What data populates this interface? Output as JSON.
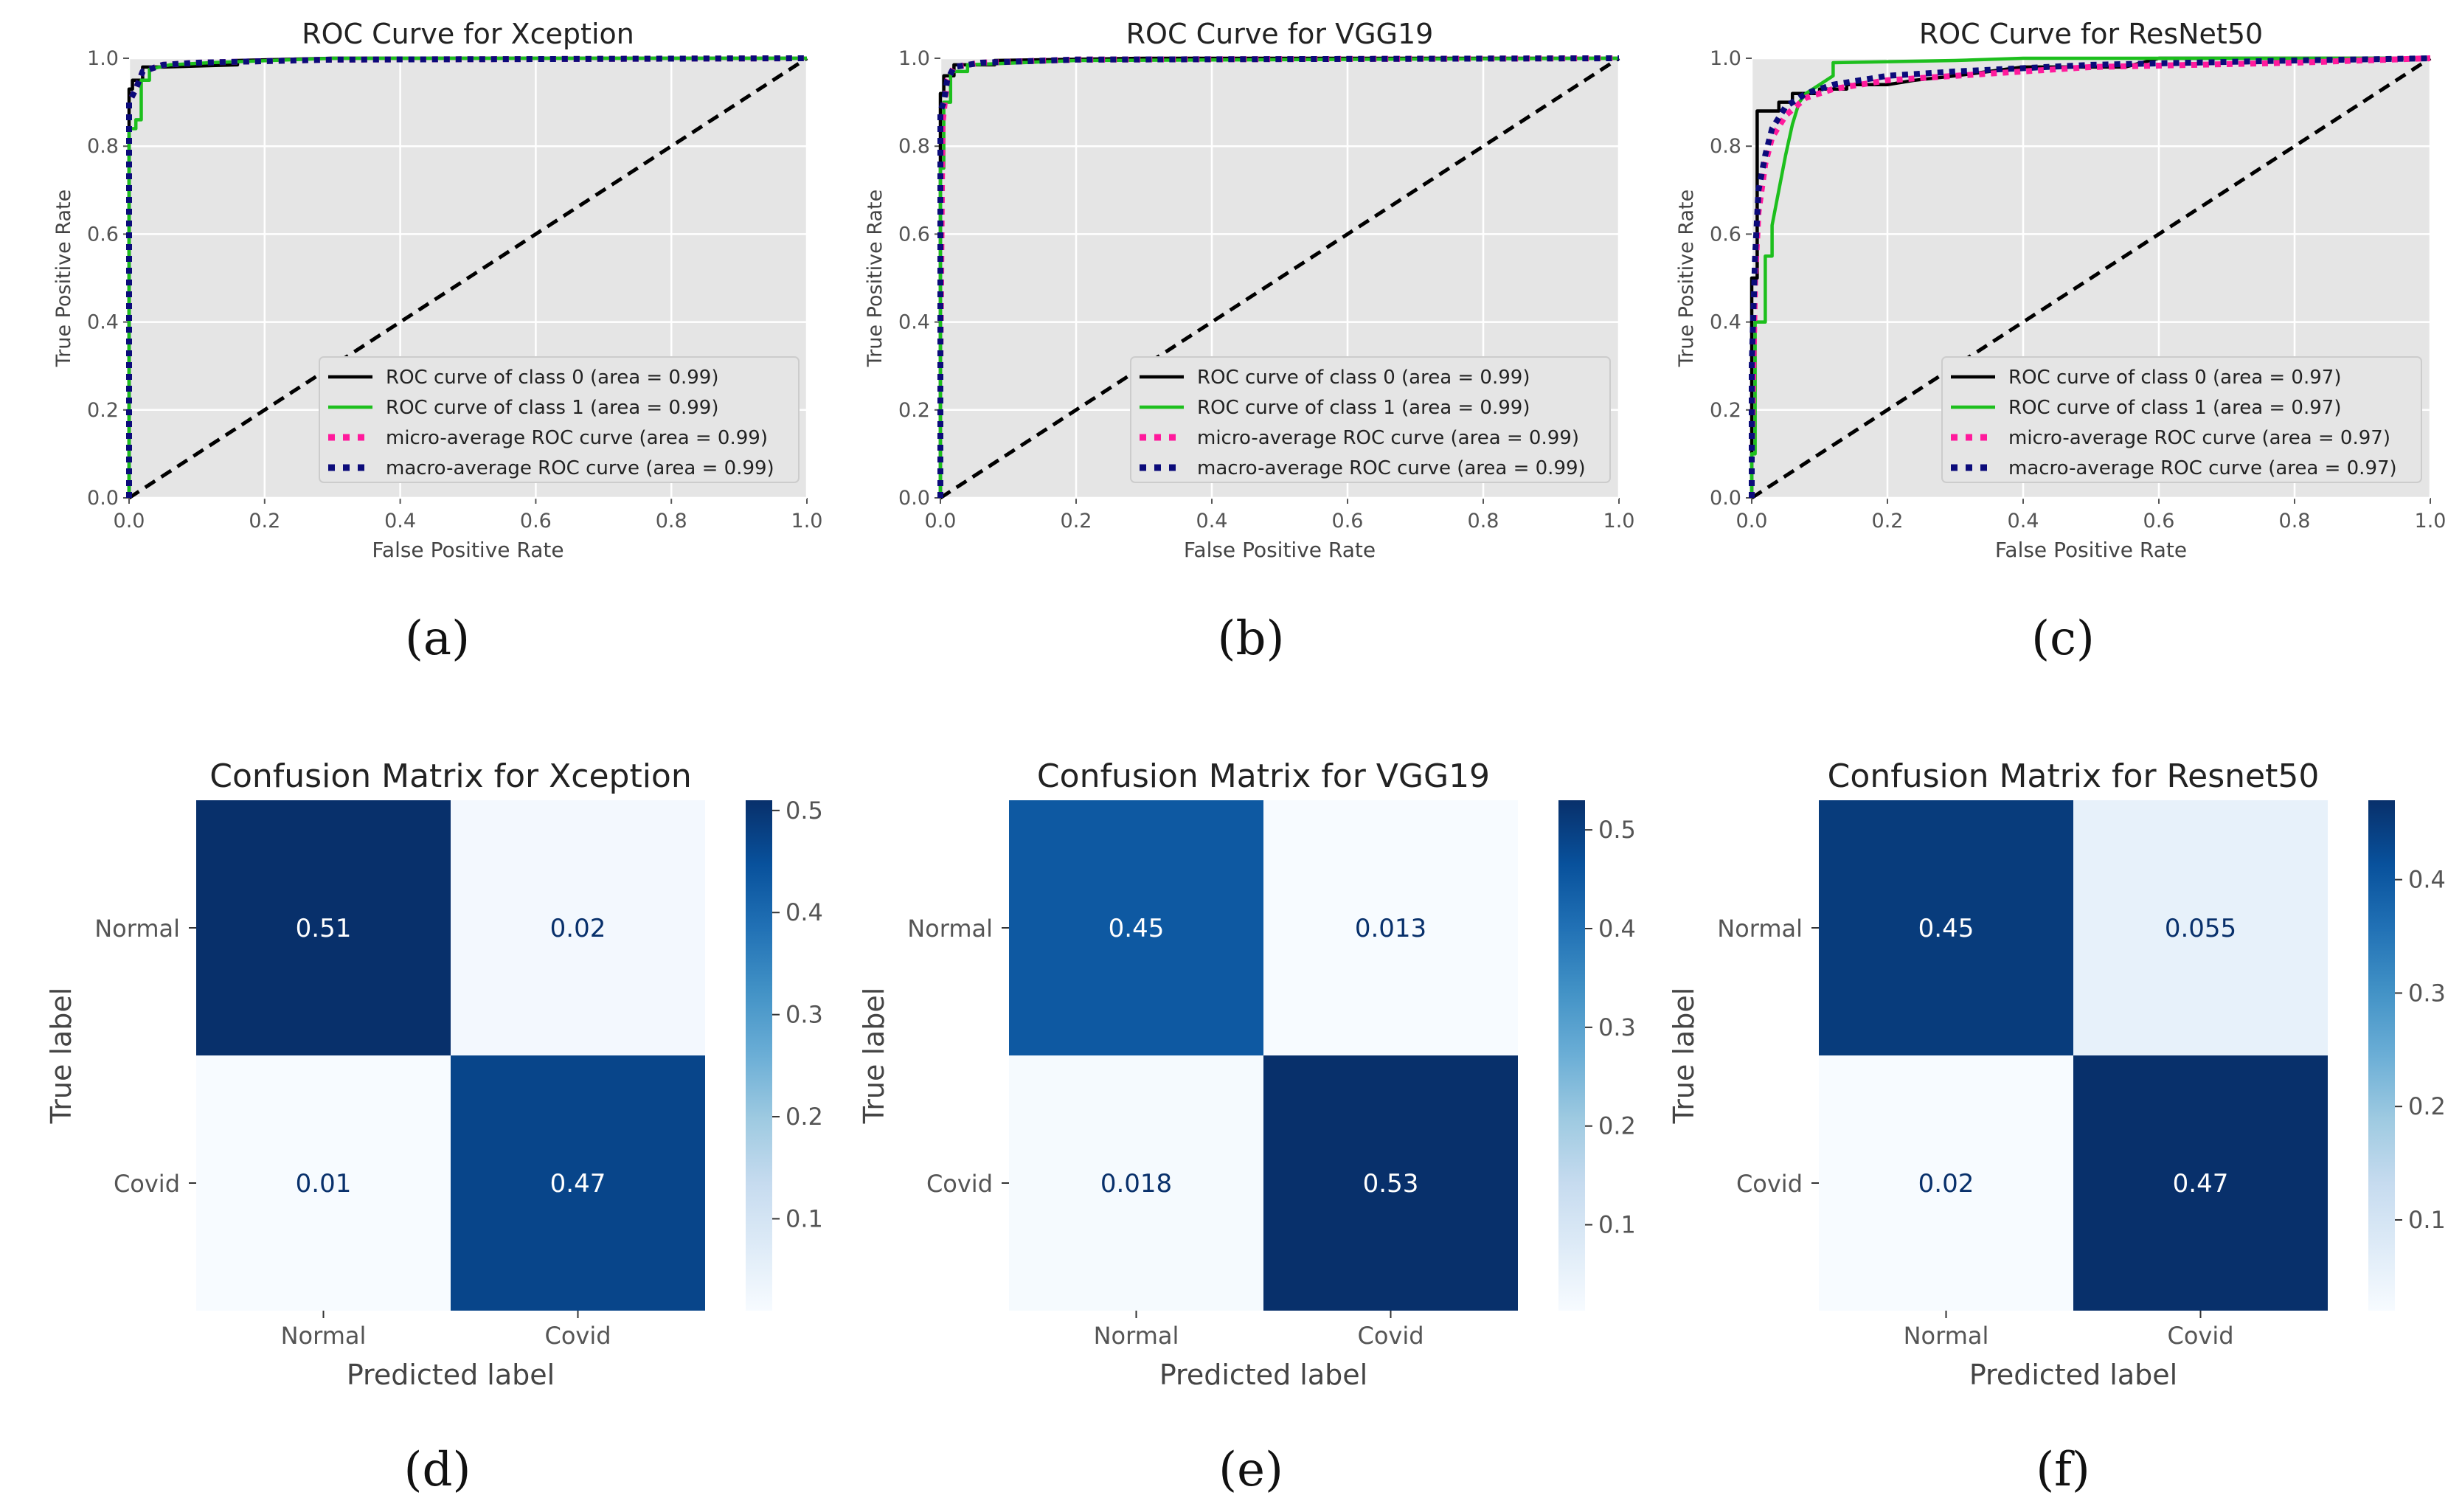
{
  "figure": {
    "captions": [
      "(a)",
      "(b)",
      "(c)",
      "(d)",
      "(e)",
      "(f)"
    ]
  },
  "colors": {
    "plot_bg": "#e5e5e5",
    "grid": "#ffffff",
    "class0": "#000000",
    "class1": "#1dbf1d",
    "micro": "#ff1a9c",
    "macro": "#0b0b7a",
    "diagonal": "#000000",
    "cmap_dark": "#08306b",
    "cmap_light": "#f7fbff"
  },
  "chart_data": [
    {
      "type": "line",
      "id": "roc-xception",
      "title": "ROC Curve for Xception",
      "xlabel": "False Positive Rate",
      "ylabel": "True Positive Rate",
      "xlim": [
        0,
        1
      ],
      "ylim": [
        0,
        1
      ],
      "xticks": [
        "0.0",
        "0.2",
        "0.4",
        "0.6",
        "0.8",
        "1.0"
      ],
      "yticks": [
        "0.0",
        "0.2",
        "0.4",
        "0.6",
        "0.8",
        "1.0"
      ],
      "grid": true,
      "legend_position": "lower-right",
      "series": [
        {
          "name": "ROC curve of class 0 (area = 0.99)",
          "style": "solid",
          "color": "class0",
          "x": [
            0,
            0,
            0.005,
            0.005,
            0.02,
            0.02,
            0.05,
            0.16,
            0.16,
            0.3,
            1.0
          ],
          "y": [
            0,
            0.93,
            0.93,
            0.95,
            0.95,
            0.98,
            0.98,
            0.985,
            0.995,
            1.0,
            1.0
          ]
        },
        {
          "name": "ROC curve of class 1 (area = 0.99)",
          "style": "solid",
          "color": "class1",
          "x": [
            0,
            0,
            0.01,
            0.01,
            0.018,
            0.018,
            0.03,
            0.03,
            0.06,
            0.12,
            0.3,
            1.0
          ],
          "y": [
            0,
            0.84,
            0.84,
            0.86,
            0.86,
            0.95,
            0.95,
            0.975,
            0.985,
            0.99,
            1.0,
            1.0
          ]
        },
        {
          "name": "micro-average ROC curve (area = 0.99)",
          "style": "dotted",
          "color": "micro",
          "x": [
            0,
            0,
            0.01,
            0.02,
            0.05,
            0.1,
            0.3,
            1.0
          ],
          "y": [
            0,
            0.9,
            0.93,
            0.97,
            0.985,
            0.99,
            0.997,
            1.0
          ]
        },
        {
          "name": "macro-average ROC curve (area = 0.99)",
          "style": "dotted",
          "color": "macro",
          "x": [
            0,
            0,
            0.01,
            0.02,
            0.05,
            0.1,
            0.3,
            1.0
          ],
          "y": [
            0,
            0.9,
            0.93,
            0.97,
            0.985,
            0.99,
            0.997,
            1.0
          ]
        }
      ]
    },
    {
      "type": "line",
      "id": "roc-vgg19",
      "title": "ROC Curve for VGG19",
      "xlabel": "False Positive Rate",
      "ylabel": "True Positive Rate",
      "xlim": [
        0,
        1
      ],
      "ylim": [
        0,
        1
      ],
      "xticks": [
        "0.0",
        "0.2",
        "0.4",
        "0.6",
        "0.8",
        "1.0"
      ],
      "yticks": [
        "0.0",
        "0.2",
        "0.4",
        "0.6",
        "0.8",
        "1.0"
      ],
      "grid": true,
      "legend_position": "lower-right",
      "series": [
        {
          "name": "ROC curve of class 0 (area = 0.99)",
          "style": "solid",
          "color": "class0",
          "x": [
            0,
            0,
            0.005,
            0.005,
            0.02,
            0.02,
            0.08,
            0.08,
            0.3,
            1.0
          ],
          "y": [
            0,
            0.92,
            0.92,
            0.96,
            0.96,
            0.985,
            0.985,
            0.995,
            1.0,
            1.0
          ]
        },
        {
          "name": "ROC curve of class 1 (area = 0.99)",
          "style": "solid",
          "color": "class1",
          "x": [
            0,
            0,
            0.005,
            0.005,
            0.015,
            0.015,
            0.04,
            0.04,
            0.2,
            1.0
          ],
          "y": [
            0,
            0.75,
            0.75,
            0.9,
            0.9,
            0.97,
            0.97,
            0.985,
            0.995,
            1.0
          ]
        },
        {
          "name": "micro-average ROC curve (area = 0.99)",
          "style": "dotted",
          "color": "micro",
          "x": [
            0,
            0,
            0.003,
            0.01,
            0.02,
            0.06,
            0.2,
            1.0
          ],
          "y": [
            0,
            0.3,
            0.85,
            0.95,
            0.98,
            0.99,
            0.997,
            1.0
          ]
        },
        {
          "name": "macro-average ROC curve (area = 0.99)",
          "style": "dotted",
          "color": "macro",
          "x": [
            0,
            0,
            0.005,
            0.01,
            0.02,
            0.06,
            0.2,
            1.0
          ],
          "y": [
            0,
            0.88,
            0.9,
            0.95,
            0.98,
            0.99,
            0.997,
            1.0
          ]
        }
      ]
    },
    {
      "type": "line",
      "id": "roc-resnet50",
      "title": "ROC Curve for ResNet50",
      "xlabel": "False Positive Rate",
      "ylabel": "True Positive Rate",
      "xlim": [
        0,
        1
      ],
      "ylim": [
        0,
        1
      ],
      "xticks": [
        "0.0",
        "0.2",
        "0.4",
        "0.6",
        "0.8",
        "1.0"
      ],
      "yticks": [
        "0.0",
        "0.2",
        "0.4",
        "0.6",
        "0.8",
        "1.0"
      ],
      "grid": true,
      "legend_position": "lower-right",
      "series": [
        {
          "name": "ROC curve of class 0 (area = 0.97)",
          "style": "solid",
          "color": "class0",
          "x": [
            0,
            0,
            0.008,
            0.008,
            0.04,
            0.04,
            0.06,
            0.06,
            0.1,
            0.1,
            0.14,
            0.14,
            0.2,
            0.24,
            0.3,
            0.35,
            0.4,
            0.55,
            0.6,
            1.0
          ],
          "y": [
            0,
            0.5,
            0.5,
            0.88,
            0.88,
            0.9,
            0.9,
            0.92,
            0.92,
            0.93,
            0.93,
            0.94,
            0.94,
            0.95,
            0.96,
            0.97,
            0.98,
            0.98,
            1.0,
            1.0
          ]
        },
        {
          "name": "ROC curve of class 1 (area = 0.97)",
          "style": "solid",
          "color": "class1",
          "x": [
            0,
            0,
            0.005,
            0.005,
            0.02,
            0.02,
            0.03,
            0.03,
            0.04,
            0.05,
            0.06,
            0.07,
            0.08,
            0.1,
            0.12,
            0.12,
            0.3,
            0.4,
            1.0
          ],
          "y": [
            0,
            0.1,
            0.1,
            0.4,
            0.4,
            0.55,
            0.55,
            0.62,
            0.7,
            0.78,
            0.85,
            0.9,
            0.92,
            0.94,
            0.96,
            0.99,
            0.995,
            1.0,
            1.0
          ]
        },
        {
          "name": "micro-average ROC curve (area = 0.97)",
          "style": "dotted",
          "color": "micro",
          "x": [
            0,
            0,
            0.005,
            0.01,
            0.02,
            0.03,
            0.05,
            0.08,
            0.12,
            0.2,
            0.3,
            0.5,
            0.8,
            1.0
          ],
          "y": [
            0,
            0.1,
            0.5,
            0.65,
            0.76,
            0.82,
            0.87,
            0.91,
            0.93,
            0.95,
            0.96,
            0.98,
            0.99,
            1.0
          ]
        },
        {
          "name": "macro-average ROC curve (area = 0.97)",
          "style": "dotted",
          "color": "macro",
          "x": [
            0,
            0,
            0.005,
            0.01,
            0.02,
            0.03,
            0.05,
            0.08,
            0.12,
            0.2,
            0.3,
            0.5,
            0.8,
            1.0
          ],
          "y": [
            0,
            0.3,
            0.55,
            0.7,
            0.78,
            0.84,
            0.89,
            0.92,
            0.94,
            0.96,
            0.97,
            0.985,
            0.995,
            1.0
          ]
        }
      ]
    },
    {
      "type": "heatmap",
      "id": "cm-xception",
      "title": "Confusion Matrix for Xception",
      "xlabel": "Predicted label",
      "ylabel": "True label",
      "row_labels": [
        "Normal",
        "Covid"
      ],
      "col_labels": [
        "Normal",
        "Covid"
      ],
      "values": [
        [
          0.51,
          0.02
        ],
        [
          0.01,
          0.47
        ]
      ],
      "value_labels": [
        [
          "0.51",
          "0.02"
        ],
        [
          "0.01",
          "0.47"
        ]
      ],
      "colorbar_range": [
        0.01,
        0.51
      ],
      "colorbar_ticks": [
        "0.1",
        "0.2",
        "0.3",
        "0.4",
        "0.5"
      ],
      "colorbar_tick_values": [
        0.1,
        0.2,
        0.3,
        0.4,
        0.5
      ]
    },
    {
      "type": "heatmap",
      "id": "cm-vgg19",
      "title": "Confusion Matrix for VGG19",
      "xlabel": "Predicted label",
      "ylabel": "True label",
      "row_labels": [
        "Normal",
        "Covid"
      ],
      "col_labels": [
        "Normal",
        "Covid"
      ],
      "values": [
        [
          0.45,
          0.013
        ],
        [
          0.018,
          0.53
        ]
      ],
      "value_labels": [
        [
          "0.45",
          "0.013"
        ],
        [
          "0.018",
          "0.53"
        ]
      ],
      "colorbar_range": [
        0.013,
        0.53
      ],
      "colorbar_ticks": [
        "0.1",
        "0.2",
        "0.3",
        "0.4",
        "0.5"
      ],
      "colorbar_tick_values": [
        0.1,
        0.2,
        0.3,
        0.4,
        0.5
      ]
    },
    {
      "type": "heatmap",
      "id": "cm-resnet50",
      "title": "Confusion Matrix for Resnet50",
      "xlabel": "Predicted label",
      "ylabel": "True label",
      "row_labels": [
        "Normal",
        "Covid"
      ],
      "col_labels": [
        "Normal",
        "Covid"
      ],
      "values": [
        [
          0.45,
          0.055
        ],
        [
          0.02,
          0.47
        ]
      ],
      "value_labels": [
        [
          "0.45",
          "0.055"
        ],
        [
          "0.02",
          "0.47"
        ]
      ],
      "colorbar_range": [
        0.02,
        0.47
      ],
      "colorbar_ticks": [
        "0.1",
        "0.2",
        "0.3",
        "0.4"
      ],
      "colorbar_tick_values": [
        0.1,
        0.2,
        0.3,
        0.4
      ]
    }
  ]
}
